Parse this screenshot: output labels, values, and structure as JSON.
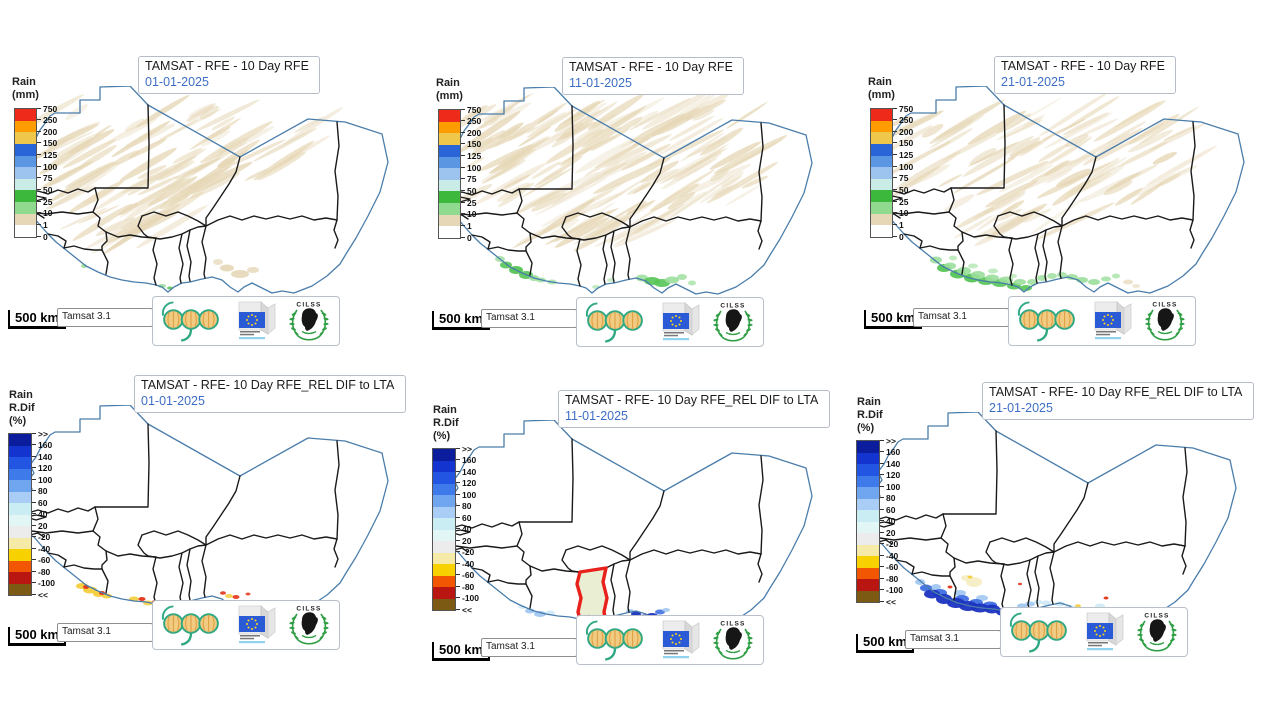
{
  "colors": {
    "date": "#3d6ec5",
    "title": "#1c1c1c",
    "coast": "#4a7dab",
    "border": "#1a1a1a",
    "tan": "#e6d7b6",
    "green": "#55c555",
    "green_light": "#9ade9a",
    "gold": "#f4cd3a",
    "red": "#e23418",
    "dark_red": "#b81310",
    "brown": "#7c5a13",
    "blue_dark": "#1b33c0",
    "blue": "#3f6fe0",
    "blue_light": "#9cc4f0",
    "cyan": "#cde9f5",
    "cream": "#f4ecc0",
    "ghana_fill": "#eaeed2",
    "ghana_stroke": "#e8211d"
  },
  "legends": {
    "rfe": {
      "title_lines": [
        "Rain",
        "(mm)"
      ],
      "ticks": [
        "750",
        "250",
        "200",
        "150",
        "125",
        "100",
        "75",
        "50",
        "25",
        "10",
        "1",
        "0"
      ],
      "band_colors": [
        "#ee2a1a",
        "#ff9c00",
        "#efc84b",
        "#2a65d8",
        "#5b96e3",
        "#9dc4ee",
        "#c9ece6",
        "#3cb83c",
        "#90da90",
        "#e6d7b6",
        "#ffffff"
      ]
    },
    "rdif": {
      "title_lines": [
        "Rain",
        "R.Dif",
        "(%)"
      ],
      "ticks": [
        ">>",
        "160",
        "140",
        "120",
        "100",
        "80",
        "60",
        "40",
        "20",
        "-20",
        "-40",
        "-60",
        "-80",
        "-100",
        "<<"
      ],
      "band_colors": [
        "#0b1c9c",
        "#1334cf",
        "#2256e2",
        "#3e7ae9",
        "#70a5ef",
        "#a9cdf4",
        "#c9edf3",
        "#e2f6f6",
        "#ececec",
        "#f6eaa9",
        "#f8d200",
        "#f25603",
        "#ba1611",
        "#7c5a13"
      ]
    }
  },
  "panels": [
    {
      "id": "rfe-dekad1",
      "title": "TAMSAT - RFE - 10 Day RFE",
      "date": "01-01-2025",
      "legend": "rfe",
      "overlay": "rfe1"
    },
    {
      "id": "rfe-dekad2",
      "title": "TAMSAT - RFE - 10 Day RFE",
      "date": "11-01-2025",
      "legend": "rfe",
      "overlay": "rfe2"
    },
    {
      "id": "rfe-dekad3",
      "title": "TAMSAT - RFE - 10 Day RFE",
      "date": "21-01-2025",
      "legend": "rfe",
      "overlay": "rfe3"
    },
    {
      "id": "rdif-dekad1",
      "title": "TAMSAT - RFE- 10 Day RFE_REL DIF to LTA",
      "date": "01-01-2025",
      "legend": "rdif",
      "overlay": "dif1"
    },
    {
      "id": "rdif-dekad2",
      "title": "TAMSAT - RFE- 10 Day RFE_REL DIF to LTA",
      "date": "11-01-2025",
      "legend": "rdif",
      "overlay": "dif2"
    },
    {
      "id": "rdif-dekad3",
      "title": "TAMSAT - RFE- 10 Day RFE_REL DIF to LTA",
      "date": "21-01-2025",
      "legend": "rdif",
      "overlay": "dif3"
    }
  ],
  "footer": {
    "scale_label": "500 km",
    "source_label": "Tamsat 3.1"
  },
  "logos": {
    "cilss_label": "CILSS"
  }
}
